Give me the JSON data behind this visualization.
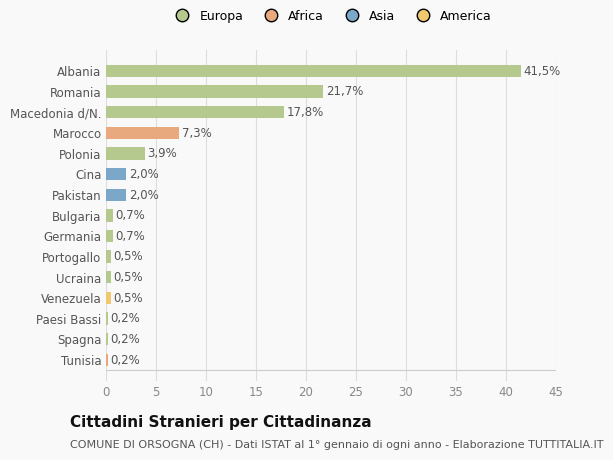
{
  "categories": [
    "Albania",
    "Romania",
    "Macedonia d/N.",
    "Marocco",
    "Polonia",
    "Cina",
    "Pakistan",
    "Bulgaria",
    "Germania",
    "Portogallo",
    "Ucraina",
    "Venezuela",
    "Paesi Bassi",
    "Spagna",
    "Tunisia"
  ],
  "values": [
    41.5,
    21.7,
    17.8,
    7.3,
    3.9,
    2.0,
    2.0,
    0.7,
    0.7,
    0.5,
    0.5,
    0.5,
    0.2,
    0.2,
    0.2
  ],
  "labels": [
    "41,5%",
    "21,7%",
    "17,8%",
    "7,3%",
    "3,9%",
    "2,0%",
    "2,0%",
    "0,7%",
    "0,7%",
    "0,5%",
    "0,5%",
    "0,5%",
    "0,2%",
    "0,2%",
    "0,2%"
  ],
  "colors": [
    "#b5c98e",
    "#b5c98e",
    "#b5c98e",
    "#e8a97e",
    "#b5c98e",
    "#7ba7c9",
    "#7ba7c9",
    "#b5c98e",
    "#b5c98e",
    "#b5c98e",
    "#b5c98e",
    "#f0c96e",
    "#b5c98e",
    "#b5c98e",
    "#e8a97e"
  ],
  "legend": [
    {
      "label": "Europa",
      "color": "#b5c98e"
    },
    {
      "label": "Africa",
      "color": "#e8a97e"
    },
    {
      "label": "Asia",
      "color": "#7ba7c9"
    },
    {
      "label": "America",
      "color": "#f0c96e"
    }
  ],
  "xlim": [
    0,
    45
  ],
  "xticks": [
    0,
    5,
    10,
    15,
    20,
    25,
    30,
    35,
    40,
    45
  ],
  "title": "Cittadini Stranieri per Cittadinanza",
  "subtitle": "COMUNE DI ORSOGNA (CH) - Dati ISTAT al 1° gennaio di ogni anno - Elaborazione TUTTITALIA.IT",
  "background_color": "#f9f9f9",
  "grid_color": "#dddddd",
  "bar_height": 0.6,
  "label_fontsize": 8.5,
  "tick_fontsize": 8.5,
  "title_fontsize": 11,
  "subtitle_fontsize": 8
}
